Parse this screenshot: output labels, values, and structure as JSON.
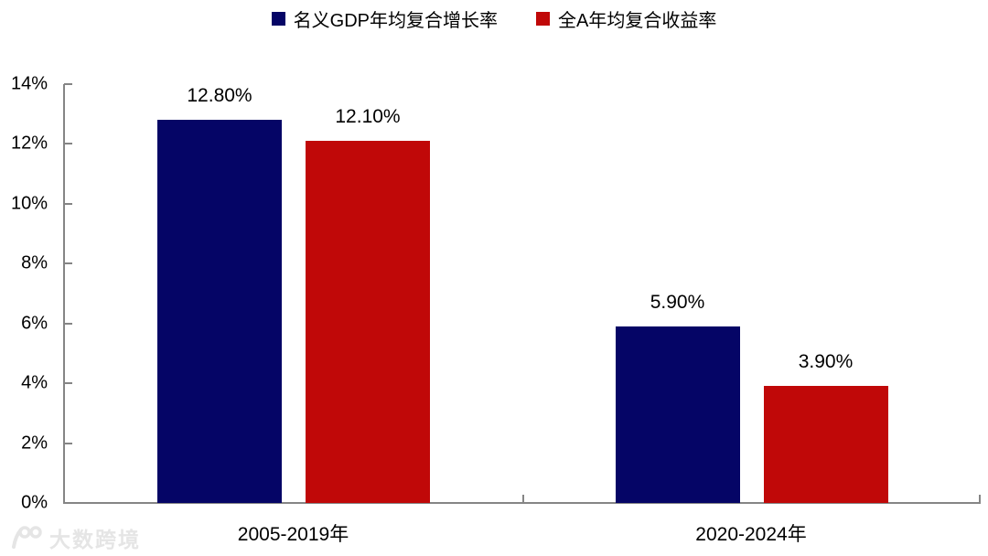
{
  "chart_data": {
    "type": "bar",
    "title": "",
    "categories": [
      "2005-2019年",
      "2020-2024年"
    ],
    "series": [
      {
        "name": "名义GDP年均复合增长率",
        "color": "#050566",
        "values": [
          12.8,
          5.9
        ],
        "labels": [
          "12.80%",
          "5.90%"
        ]
      },
      {
        "name": "全A年均复合收益率",
        "color": "#c00808",
        "values": [
          12.1,
          3.9
        ],
        "labels": [
          "12.10%",
          "3.90%"
        ]
      }
    ],
    "y_axis": {
      "min": 0,
      "max": 14,
      "step": 2,
      "tick_labels": [
        "0%",
        "2%",
        "4%",
        "6%",
        "8%",
        "10%",
        "12%",
        "14%"
      ]
    },
    "legend_position": "top",
    "grid": false,
    "axis_color": "#858585",
    "background": "#ffffff"
  },
  "watermark": {
    "logo": "100-logo",
    "text": "大数跨境",
    "color": "#e5e5e5"
  }
}
